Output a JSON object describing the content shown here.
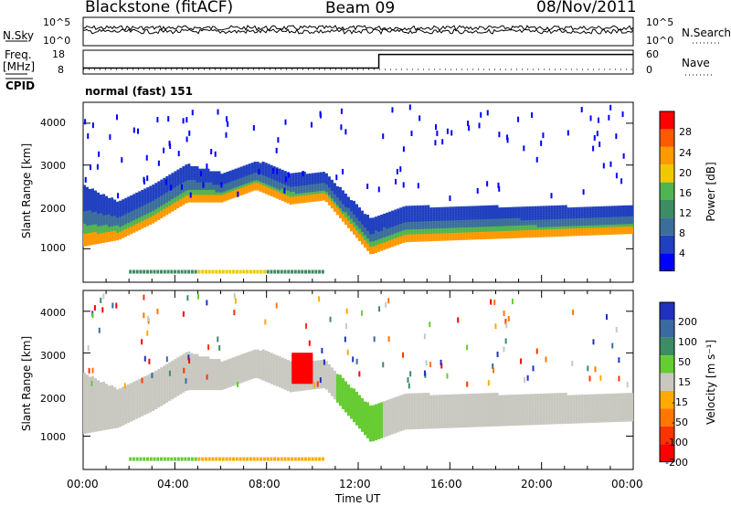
{
  "header": {
    "title": "Blackstone (fitACF)",
    "beam": "Beam 09",
    "date": "08/Nov/2011"
  },
  "noise_panel": {
    "left_label": "N.Sky",
    "right_label": "N.Search",
    "left_ticks": [
      "10^5",
      "10^0"
    ],
    "right_ticks": [
      "10^5",
      "10^0"
    ]
  },
  "freq_panel": {
    "left_label": "Freq.",
    "left_unit": "[MHz]",
    "right_label": "Nave",
    "left_ticks": [
      "18",
      "8"
    ],
    "right_ticks": [
      "60",
      "0"
    ]
  },
  "cpid": {
    "label": "CPID",
    "value": "normal (fast) 151"
  },
  "x_axis": {
    "title": "Time UT",
    "ticks": [
      "00:00",
      "04:00",
      "08:00",
      "12:00",
      "16:00",
      "20:00",
      "00:00"
    ]
  },
  "power_panel": {
    "ylabel": "Slant Range [km]",
    "yticks": [
      "4000",
      "3000",
      "2000",
      "1000"
    ],
    "colorbar_label": "Power [dB]",
    "colorbar_ticks": [
      "28",
      "24",
      "20",
      "16",
      "12",
      "8",
      "4"
    ],
    "colors": [
      "#0000ff",
      "#2040c0",
      "#3c6e9c",
      "#3c8c64",
      "#50b450",
      "#f0c800",
      "#ff9900",
      "#ff5a00",
      "#ff0000"
    ]
  },
  "velocity_panel": {
    "ylabel": "Slant Range [km]",
    "yticks": [
      "4000",
      "3000",
      "2000",
      "1000"
    ],
    "colorbar_label": "Velocity [m s⁻¹]",
    "colorbar_ticks": [
      "200",
      "100",
      "50",
      "15",
      "-15",
      "-50",
      "-100",
      "-200"
    ],
    "colors": [
      "#2030c0",
      "#3a6aa0",
      "#3c8c64",
      "#66cc33",
      "#c8c8c0",
      "#ffaa00",
      "#ff7700",
      "#ff3300",
      "#ff0000"
    ]
  },
  "chart_data": [
    {
      "type": "line",
      "title": "Blackstone (fitACF)  Beam 09  08/Nov/2011",
      "series": [
        {
          "name": "Freq.",
          "x": [
            0,
            12.9,
            12.9,
            24
          ],
          "values": [
            10.5,
            10.5,
            16.2,
            16.2
          ]
        }
      ],
      "xlabel": "Time UT",
      "ylabel": "Freq. [MHz]",
      "ylim": [
        8,
        18
      ],
      "xlim": [
        0,
        24
      ]
    },
    {
      "type": "heatmap",
      "title": "Power",
      "xlabel": "Time UT",
      "ylabel": "Slant Range [km]",
      "xlim": [
        0,
        24
      ],
      "ylim": [
        200,
        4500
      ],
      "colorbar": {
        "label": "Power [dB]",
        "range": [
          0,
          30
        ]
      },
      "scatter_band": [
        {
          "t": 0,
          "lower": 1100,
          "upper": 2500
        },
        {
          "t": 1.5,
          "lower": 1250,
          "upper": 2100
        },
        {
          "t": 3,
          "lower": 1650,
          "upper": 2500
        },
        {
          "t": 4.5,
          "lower": 2150,
          "upper": 3000
        },
        {
          "t": 6,
          "lower": 2150,
          "upper": 2800
        },
        {
          "t": 7.5,
          "lower": 2450,
          "upper": 3100
        },
        {
          "t": 9,
          "lower": 2100,
          "upper": 2800
        },
        {
          "t": 10.5,
          "lower": 2200,
          "upper": 2800
        },
        {
          "t": 12.5,
          "lower": 900,
          "upper": 1700
        },
        {
          "t": 14,
          "lower": 1200,
          "upper": 2000
        },
        {
          "t": 24,
          "lower": 1400,
          "upper": 2000
        }
      ]
    },
    {
      "type": "heatmap",
      "title": "Velocity",
      "xlabel": "Time UT",
      "ylabel": "Slant Range [km]",
      "xlim": [
        0,
        24
      ],
      "ylim": [
        200,
        4500
      ],
      "colorbar": {
        "label": "Velocity [m s⁻¹]",
        "range": [
          -200,
          200
        ]
      }
    }
  ]
}
